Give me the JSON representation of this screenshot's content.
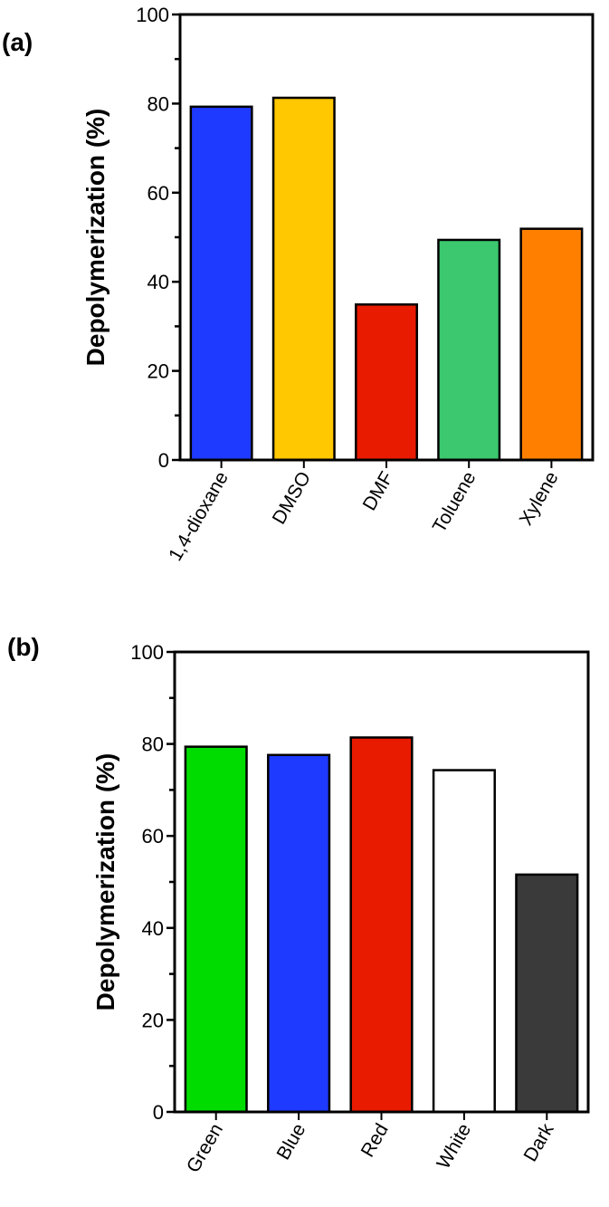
{
  "chart_data": [
    {
      "type": "bar",
      "panel_label": "(a)",
      "ylabel": "Depolymerization (%)",
      "xlabel": "",
      "categories": [
        "1,4-dioxane",
        "DMSO",
        "DMF",
        "Toluene",
        "Xylene"
      ],
      "values": [
        79.3,
        81.3,
        34.9,
        49.4,
        51.9
      ],
      "colors": [
        "#1f3aff",
        "#ffc800",
        "#e81a00",
        "#3cc86e",
        "#ff8000"
      ],
      "ylim": [
        0,
        100
      ],
      "yticks": [
        0,
        20,
        40,
        60,
        80,
        100
      ],
      "grid": false
    },
    {
      "type": "bar",
      "panel_label": "(b)",
      "ylabel": "Depolymerization (%)",
      "xlabel": "",
      "categories": [
        "Green",
        "Blue",
        "Red",
        "White",
        "Dark"
      ],
      "values": [
        79.4,
        77.6,
        81.4,
        74.3,
        51.6
      ],
      "colors": [
        "#00dc00",
        "#1f3aff",
        "#e81a00",
        "#ffffff",
        "#3a3a3a"
      ],
      "ylim": [
        0,
        100
      ],
      "yticks": [
        0,
        20,
        40,
        60,
        80,
        100
      ],
      "grid": false
    }
  ]
}
